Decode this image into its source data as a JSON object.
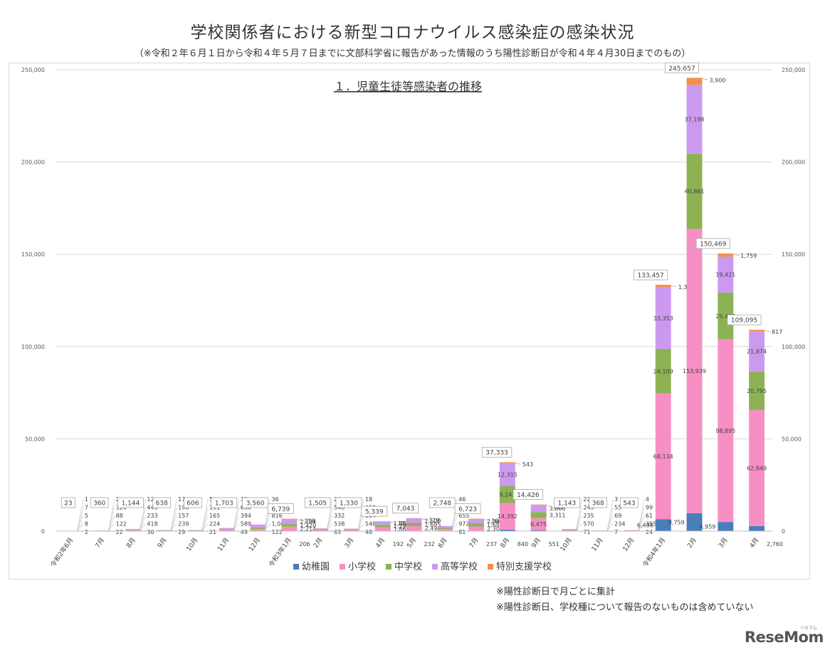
{
  "page": {
    "title": "学校関係者における新型コロナウイルス感染症の感染状況",
    "subtitle": "（※令和２年６月１日から令和４年５月７日までに文部科学省に報告があった情報のうち陽性診断日が令和４年４月30日までのもの）",
    "notes": [
      "※陽性診断日で月ごとに集計",
      "※陽性診断日、学校種について報告のないものは含めていない"
    ],
    "logo": "ReseMom",
    "logo_small": "リセマム"
  },
  "chart_data": {
    "type": "bar",
    "stacked": true,
    "title": "１．児童生徒等感染者の推移",
    "ylim": [
      0,
      250000
    ],
    "yticks": [
      0,
      50000,
      100000,
      150000,
      200000,
      250000
    ],
    "ytick_labels": [
      "0",
      "50,000",
      "100,000",
      "150,000",
      "200,000",
      "250,000"
    ],
    "grid": true,
    "legend_position": "bottom",
    "categories": [
      "令和2年6月",
      "7月",
      "8月",
      "9月",
      "10月",
      "11月",
      "12月",
      "令和3年1月",
      "2月",
      "3月",
      "4月",
      "5月",
      "6月",
      "7月",
      "8月",
      "9月",
      "10月",
      "11月",
      "12月",
      "令和4年1月",
      "2月",
      "3月",
      "4月"
    ],
    "series": [
      {
        "name": "幼稚園",
        "color": "#4a7ebb",
        "values": [
          2,
          22,
          36,
          29,
          21,
          49,
          122,
          206,
          63,
          48,
          192,
          232,
          81,
          237,
          840,
          551,
          71,
          7,
          24,
          6498,
          9759,
          4959,
          2760
        ],
        "labels": [
          "2",
          "22",
          "36",
          "29",
          "21",
          "49",
          "122",
          "206",
          "63",
          "48",
          "192",
          "232",
          "81",
          "237",
          "840",
          "551",
          "71",
          "7",
          "24",
          "6,498",
          "9,759",
          "4,959",
          "2,760"
        ]
      },
      {
        "name": "小学校",
        "color": "#f78fc4",
        "values": [
          8,
          122,
          418,
          239,
          224,
          589,
          1061,
          2211,
          538,
          548,
          1861,
          2497,
          972,
          2300,
          14392,
          6475,
          570,
          234,
          355,
          68134,
          153939,
          98895,
          62849
        ],
        "labels": [
          "8",
          "122",
          "418",
          "239",
          "224",
          "589",
          "1,061",
          "2,211",
          "538",
          "548",
          "1,861",
          "2,497",
          "972",
          "2,300",
          "14,392",
          "6,475",
          "570",
          "234",
          "355",
          "68,134",
          "153,939",
          "98,895",
          "62,849"
        ]
      },
      {
        "name": "中学校",
        "color": "#8db254",
        "values": [
          5,
          88,
          233,
          157,
          165,
          394,
          816,
          1420,
          332,
          304,
          1292,
          1695,
          655,
          1682,
          9243,
          3311,
          235,
          69,
          61,
          24109,
          40861,
          25435,
          20795
        ],
        "labels": [
          "5",
          "88",
          "233",
          "157",
          "165",
          "394",
          "816",
          "1,420",
          "332",
          "304",
          "1,292",
          "1,695",
          "655",
          "1,682",
          "9,243",
          "3,311",
          "235",
          "69",
          "61",
          "24,109",
          "40,861",
          "25,435",
          "20,795"
        ]
      },
      {
        "name": "高等学校",
        "color": "#cc99f0",
        "values": [
          7,
          126,
          445,
          196,
          191,
          638,
          1525,
          2784,
          548,
          412,
          1892,
          2500,
          994,
          2340,
          12315,
          3866,
          245,
          55,
          99,
          33353,
          37198,
          19421,
          21874
        ],
        "labels": [
          "7",
          "126",
          "445",
          "196",
          "191",
          "638",
          "1,525",
          "2,784",
          "548",
          "412",
          "1,892",
          "2,500",
          "994",
          "2,340",
          "12,315",
          "3,866",
          "245",
          "55",
          "99",
          "33,353",
          "37,198",
          "19,421",
          "21,874"
        ]
      },
      {
        "name": "特別支援学校",
        "color": "#f2924a",
        "values": [
          1,
          2,
          12,
          17,
          5,
          33,
          36,
          118,
          24,
          18,
          102,
          119,
          46,
          164,
          543,
          223,
          22,
          3,
          4,
          1363,
          3900,
          1759,
          817
        ],
        "labels": [
          "1",
          "2",
          "12",
          "17",
          "5",
          "33",
          "36",
          "118",
          "24",
          "18",
          "102",
          "119",
          "46",
          "164",
          "543",
          "223",
          "22",
          "3",
          "4",
          "1,363",
          "3,900",
          "1,759",
          "817"
        ]
      }
    ],
    "totals": [
      23,
      360,
      1144,
      638,
      606,
      1703,
      3560,
      6739,
      1505,
      1330,
      5339,
      7043,
      2748,
      6723,
      37333,
      14426,
      1143,
      368,
      543,
      133457,
      245657,
      150469,
      109095
    ],
    "total_labels": [
      "23",
      "360",
      "1,144",
      "638",
      "606",
      "1,703",
      "3,560",
      "6,739",
      "1,505",
      "1,330",
      "5,339",
      "7,043",
      "2,748",
      "6,723",
      "37,333",
      "14,426",
      "1,143",
      "368",
      "543",
      "133,457",
      "245,657",
      "150,469",
      "109,095"
    ]
  }
}
